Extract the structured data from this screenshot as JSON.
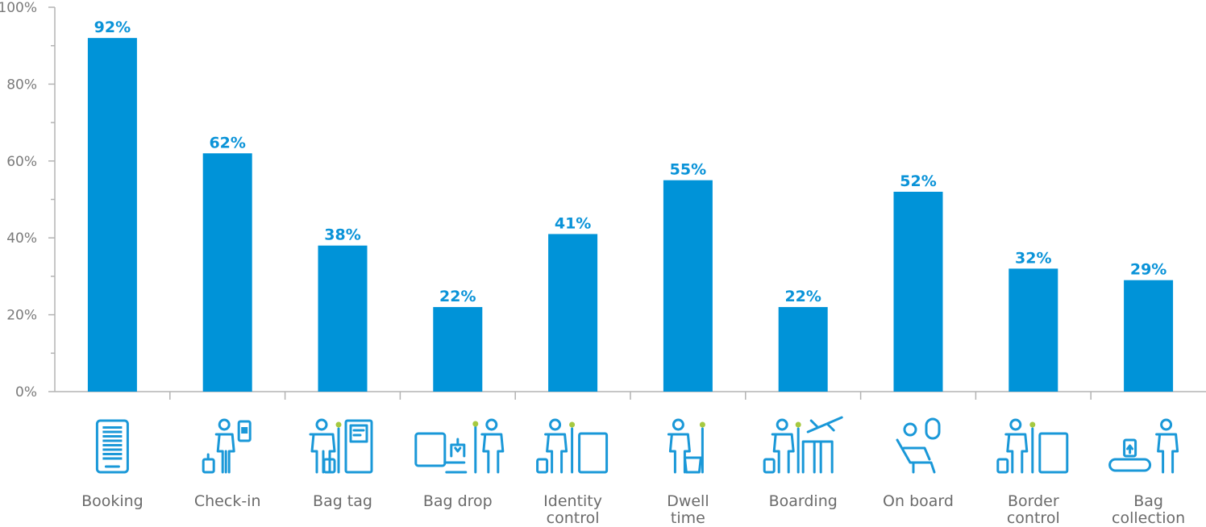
{
  "chart_data": {
    "type": "bar",
    "categories": [
      [
        "Booking"
      ],
      [
        "Check-in"
      ],
      [
        "Bag tag"
      ],
      [
        "Bag drop"
      ],
      [
        "Identity",
        "control"
      ],
      [
        "Dwell",
        "time"
      ],
      [
        "Boarding"
      ],
      [
        "On board"
      ],
      [
        "Border",
        "control"
      ],
      [
        "Bag",
        "collection"
      ]
    ],
    "values": [
      92,
      62,
      38,
      22,
      41,
      55,
      22,
      52,
      32,
      29
    ],
    "data_labels": [
      "92%",
      "62%",
      "38%",
      "22%",
      "41%",
      "55%",
      "22%",
      "52%",
      "32%",
      "29%"
    ],
    "icons": [
      "tablet-icon",
      "check-in-phone-icon",
      "bag-tag-kiosk-icon",
      "bag-drop-icon",
      "identity-control-icon",
      "dwell-time-shopping-icon",
      "boarding-gate-icon",
      "on-board-seat-icon",
      "border-control-icon",
      "bag-collection-carousel-icon"
    ],
    "y_ticks": [
      "0%",
      "20%",
      "40%",
      "60%",
      "80%",
      "100%"
    ],
    "ylim": [
      0,
      100
    ],
    "bar_color": "#0093d8",
    "label_color": "#0a93d8",
    "accent_color": "#a6c940",
    "grid": false
  }
}
